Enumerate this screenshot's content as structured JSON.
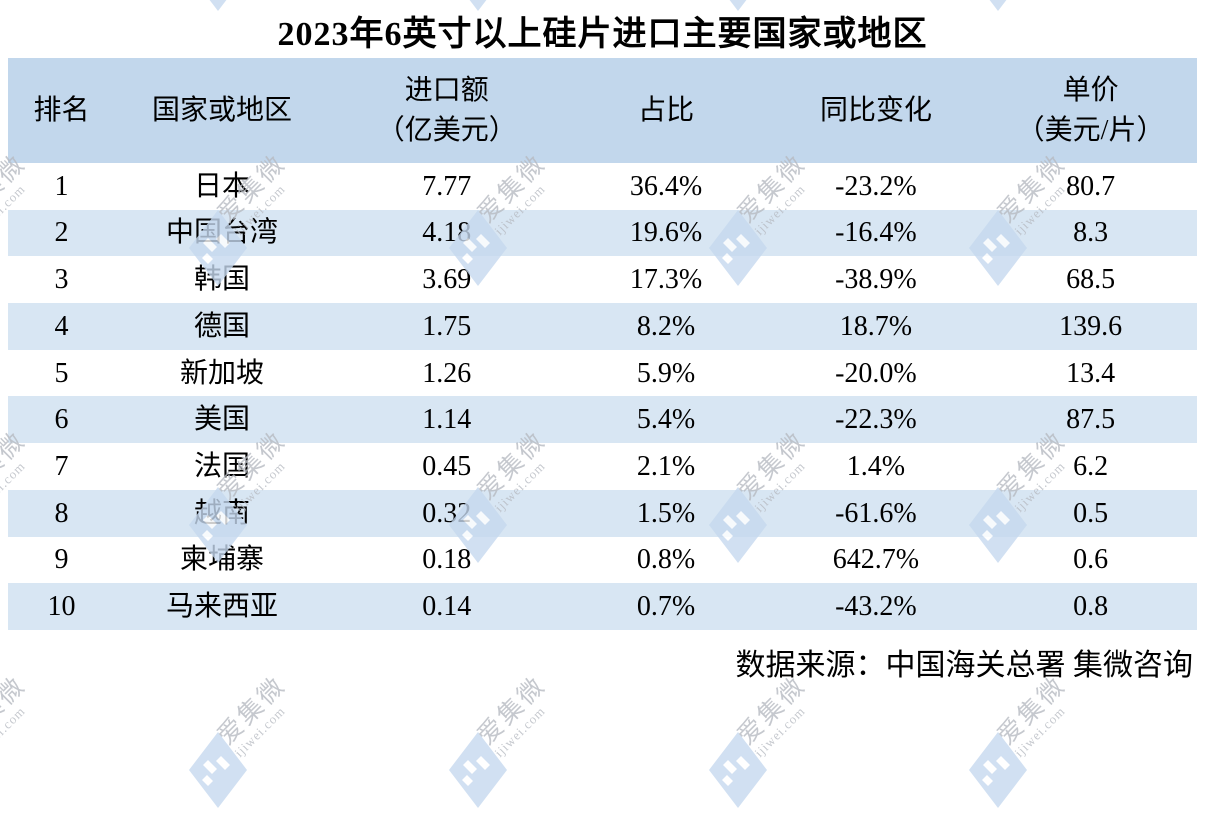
{
  "title": "2023年6英寸以上硅片进口主要国家或地区",
  "table": {
    "header": [
      {
        "line1": "排名",
        "line2": ""
      },
      {
        "line1": "国家或地区",
        "line2": ""
      },
      {
        "line1": "进口额",
        "line2": "（亿美元）"
      },
      {
        "line1": "占比",
        "line2": ""
      },
      {
        "line1": "同比变化",
        "line2": ""
      },
      {
        "line1": "单价",
        "line2": "（美元/片）"
      }
    ]
  },
  "chart_data": {
    "type": "table",
    "title": "2023年6英寸以上硅片进口主要国家或地区",
    "columns": [
      "排名",
      "国家或地区",
      "进口额（亿美元）",
      "占比",
      "同比变化",
      "单价（美元/片）"
    ],
    "rows": [
      [
        "1",
        "日本",
        "7.77",
        "36.4%",
        "-23.2%",
        "80.7"
      ],
      [
        "2",
        "中国台湾",
        "4.18",
        "19.6%",
        "-16.4%",
        "8.3"
      ],
      [
        "3",
        "韩国",
        "3.69",
        "17.3%",
        "-38.9%",
        "68.5"
      ],
      [
        "4",
        "德国",
        "1.75",
        "8.2%",
        "18.7%",
        "139.6"
      ],
      [
        "5",
        "新加坡",
        "1.26",
        "5.9%",
        "-20.0%",
        "13.4"
      ],
      [
        "6",
        "美国",
        "1.14",
        "5.4%",
        "-22.3%",
        "87.5"
      ],
      [
        "7",
        "法国",
        "0.45",
        "2.1%",
        "1.4%",
        "6.2"
      ],
      [
        "8",
        "越南",
        "0.32",
        "1.5%",
        "-61.6%",
        "0.5"
      ],
      [
        "9",
        "柬埔寨",
        "0.18",
        "0.8%",
        "642.7%",
        "0.6"
      ],
      [
        "10",
        "马来西亚",
        "0.14",
        "0.7%",
        "-43.2%",
        "0.8"
      ]
    ],
    "source": "数据来源：中国海关总署 集微咨询"
  },
  "footer": {
    "source_label": "数据来源：中国海关总署 集微咨询"
  },
  "watermark": {
    "brand": "爱集微",
    "domain": "ijiwei.com"
  },
  "colors": {
    "header_bg": "#c2d7ec",
    "row_stripe": "#d8e6f3",
    "watermark_blue": "#c6d9ef",
    "watermark_gray": "#b7bbc2",
    "text": "#000000"
  }
}
